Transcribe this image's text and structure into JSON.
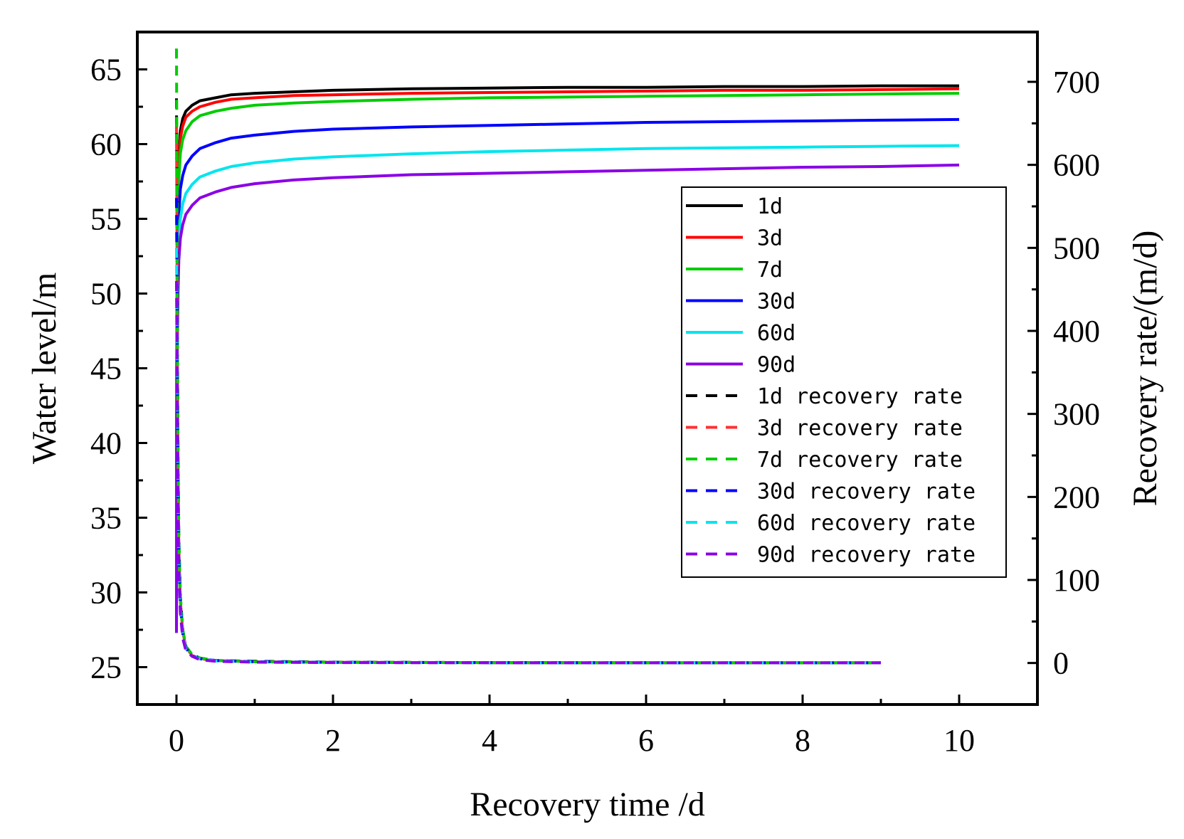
{
  "chart_data": {
    "type": "line",
    "x_axis": {
      "label": "Recovery time /d",
      "range": [
        -0.5,
        11.0
      ],
      "ticks": [
        0,
        2,
        4,
        6,
        8,
        10
      ]
    },
    "y_left": {
      "label": "Water level/m",
      "range": [
        22.5,
        67.5
      ],
      "ticks": [
        25,
        30,
        35,
        40,
        45,
        50,
        55,
        60,
        65
      ]
    },
    "y_right": {
      "label": "Recovery rate/(m/d)",
      "range": [
        -50,
        760
      ],
      "ticks": [
        0,
        100,
        200,
        300,
        400,
        500,
        600,
        700
      ]
    },
    "level_time_points": [
      0,
      0.003,
      0.01,
      0.02,
      0.03,
      0.05,
      0.08,
      0.12,
      0.2,
      0.3,
      0.5,
      0.7,
      1,
      1.5,
      2,
      3,
      4,
      5,
      6,
      7,
      8,
      9,
      10
    ],
    "rate_time_points": [
      0,
      0.005,
      0.01,
      0.02,
      0.03,
      0.05,
      0.08,
      0.12,
      0.2,
      0.3,
      0.5,
      1,
      2,
      4,
      6,
      8,
      9
    ],
    "series": [
      {
        "name": "1d",
        "axis": "left",
        "style": "solid",
        "color": "#000000",
        "values": [
          27.3,
          45.0,
          52.5,
          56.8,
          59.2,
          60.9,
          61.7,
          62.2,
          62.6,
          62.9,
          63.1,
          63.3,
          63.4,
          63.5,
          63.6,
          63.7,
          63.75,
          63.8,
          63.8,
          63.85,
          63.85,
          63.9,
          63.9
        ]
      },
      {
        "name": "3d",
        "axis": "left",
        "style": "solid",
        "color": "#ff0000",
        "values": [
          27.3,
          44.0,
          52.0,
          56.2,
          58.7,
          60.4,
          61.2,
          61.8,
          62.2,
          62.5,
          62.8,
          63.0,
          63.1,
          63.25,
          63.3,
          63.4,
          63.45,
          63.5,
          63.55,
          63.6,
          63.6,
          63.65,
          63.7
        ]
      },
      {
        "name": "7d",
        "axis": "left",
        "style": "solid",
        "color": "#00cc00",
        "values": [
          27.3,
          43.0,
          51.2,
          55.2,
          57.6,
          59.4,
          60.3,
          60.9,
          61.5,
          61.9,
          62.2,
          62.4,
          62.6,
          62.75,
          62.85,
          63.0,
          63.1,
          63.15,
          63.2,
          63.25,
          63.3,
          63.35,
          63.4
        ]
      },
      {
        "name": "30d",
        "axis": "left",
        "style": "solid",
        "color": "#0000ff",
        "values": [
          27.3,
          41.0,
          49.0,
          53.0,
          55.3,
          57.0,
          57.9,
          58.6,
          59.2,
          59.7,
          60.1,
          60.4,
          60.6,
          60.85,
          61.0,
          61.15,
          61.25,
          61.35,
          61.45,
          61.5,
          61.55,
          61.6,
          61.65
        ]
      },
      {
        "name": "60d",
        "axis": "left",
        "style": "solid",
        "color": "#00e5ee",
        "values": [
          27.3,
          40.0,
          47.5,
          51.2,
          53.5,
          55.0,
          56.0,
          56.7,
          57.3,
          57.8,
          58.2,
          58.5,
          58.75,
          59.0,
          59.15,
          59.35,
          59.5,
          59.6,
          59.7,
          59.75,
          59.8,
          59.85,
          59.9
        ]
      },
      {
        "name": "90d",
        "axis": "left",
        "style": "solid",
        "color": "#8a00e6",
        "values": [
          27.3,
          39.0,
          46.0,
          50.0,
          52.2,
          53.7,
          54.6,
          55.3,
          55.9,
          56.4,
          56.8,
          57.1,
          57.35,
          57.6,
          57.75,
          57.95,
          58.05,
          58.15,
          58.25,
          58.35,
          58.45,
          58.5,
          58.6
        ]
      },
      {
        "name": "1d recovery rate",
        "axis": "right",
        "style": "dashed",
        "color": "#000000",
        "values": [
          680,
          560,
          420,
          250,
          150,
          80,
          40,
          20,
          10,
          6,
          3,
          2,
          1,
          0.5,
          0.3,
          0.2,
          0.2
        ]
      },
      {
        "name": "3d recovery rate",
        "axis": "right",
        "style": "dashed",
        "color": "#ff3030",
        "values": [
          650,
          540,
          400,
          240,
          140,
          75,
          38,
          19,
          9,
          5,
          3,
          1.5,
          0.8,
          0.4,
          0.2,
          0.2,
          0.2
        ]
      },
      {
        "name": "7d recovery rate",
        "axis": "right",
        "style": "dashed",
        "color": "#00cc00",
        "values": [
          740,
          600,
          430,
          255,
          150,
          80,
          40,
          20,
          10,
          6,
          3,
          1.5,
          0.8,
          0.4,
          0.2,
          0.2,
          0.2
        ]
      },
      {
        "name": "30d recovery rate",
        "axis": "right",
        "style": "dashed",
        "color": "#0000ff",
        "values": [
          560,
          470,
          360,
          220,
          130,
          70,
          35,
          18,
          9,
          5,
          3,
          1.5,
          0.8,
          0.4,
          0.2,
          0.2,
          0.2
        ]
      },
      {
        "name": "60d recovery rate",
        "axis": "right",
        "style": "dashed",
        "color": "#00e5ee",
        "values": [
          500,
          420,
          330,
          200,
          120,
          65,
          33,
          17,
          8,
          5,
          2.5,
          1.2,
          0.6,
          0.3,
          0.2,
          0.2,
          0.2
        ]
      },
      {
        "name": "90d recovery rate",
        "axis": "right",
        "style": "dashed",
        "color": "#8a00e6",
        "values": [
          460,
          390,
          300,
          185,
          110,
          60,
          30,
          15,
          8,
          4,
          2,
          1,
          0.5,
          0.3,
          0.2,
          0.2,
          0.2
        ]
      }
    ],
    "legend": {
      "position": "right-center",
      "frame": true
    },
    "grid": false
  }
}
